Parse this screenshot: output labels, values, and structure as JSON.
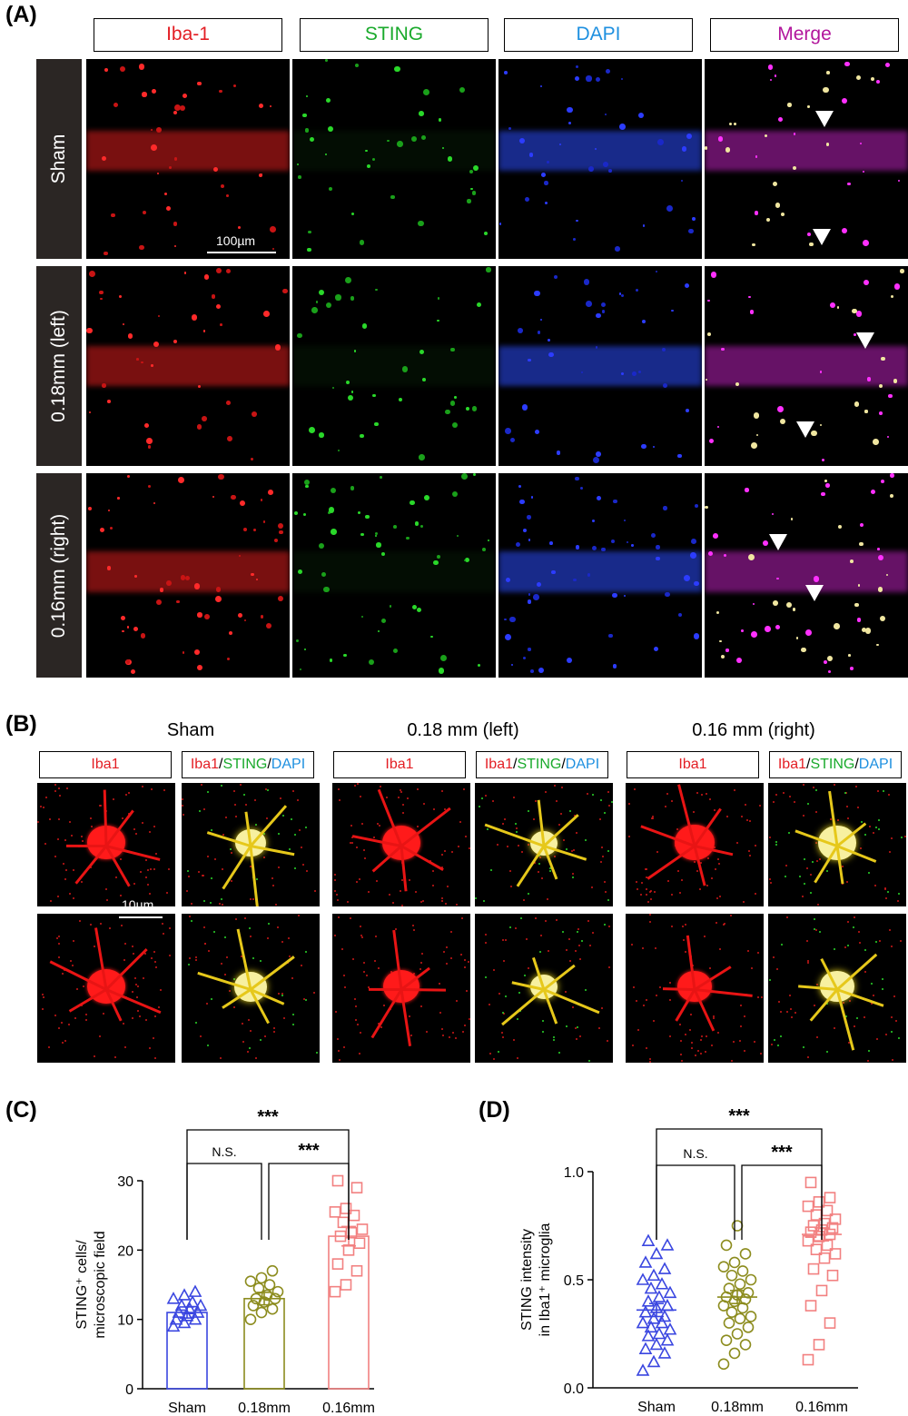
{
  "panels": {
    "A": {
      "letter": "(A)",
      "channels": [
        "Iba-1",
        "STING",
        "DAPI",
        "Merge"
      ],
      "rows": [
        "Sham",
        "0.18mm (left)",
        "0.16mm (right)"
      ],
      "scalebar": "100µm"
    },
    "B": {
      "letter": "(B)",
      "groups": [
        "Sham",
        "0.18 mm (left)",
        "0.16 mm (right)"
      ],
      "label_single": "Iba1",
      "label_merge": {
        "a": "Iba1",
        "b": "STING",
        "c": "DAPI",
        "sep": "/"
      },
      "scalebar": "10µm"
    },
    "C": {
      "letter": "(C)"
    },
    "D": {
      "letter": "(D)"
    }
  },
  "chart_data": [
    {
      "type": "bar",
      "panel": "C",
      "categories": [
        "Sham",
        "0.18mm",
        "0.16mm"
      ],
      "values": [
        11,
        13,
        22
      ],
      "error": [
        0.8,
        0.9,
        1.4
      ],
      "ylabel_line1": "STING⁺ cells/",
      "ylabel_line2": "microscopic field",
      "ylim": [
        0,
        30
      ],
      "yticks": [
        "0",
        "10",
        "20",
        "30"
      ],
      "points": [
        [
          9,
          9.5,
          10,
          10,
          10.5,
          11,
          11,
          11.5,
          12,
          12,
          12.5,
          13,
          13.5,
          14
        ],
        [
          10,
          11,
          11.5,
          12,
          12.5,
          13,
          13,
          13.5,
          14,
          14.5,
          15,
          15.5,
          16,
          17
        ],
        [
          14,
          15,
          17,
          18,
          20,
          21,
          22,
          22.5,
          23,
          24,
          25,
          25.5,
          26,
          29,
          30
        ]
      ],
      "colors": [
        "#3a46e0",
        "#8c8c1e",
        "#f28080"
      ],
      "markers": [
        "triangle",
        "circle",
        "square"
      ],
      "significance": [
        {
          "from": 0,
          "to": 2,
          "label": "***"
        },
        {
          "from": 0,
          "to": 1,
          "label": "N.S."
        },
        {
          "from": 1,
          "to": 2,
          "label": "***"
        }
      ]
    },
    {
      "type": "scatter",
      "panel": "D",
      "categories": [
        "Sham",
        "0.18mm",
        "0.16mm"
      ],
      "means": [
        0.36,
        0.42,
        0.71
      ],
      "error": [
        0.03,
        0.03,
        0.03
      ],
      "ylabel_line1": "STING intensity",
      "ylabel_line2": "in Iba1⁺ microglia",
      "ylim": [
        0,
        1
      ],
      "yticks": [
        "0.0",
        "0.5",
        "1.0"
      ],
      "points": [
        [
          0.08,
          0.12,
          0.16,
          0.18,
          0.2,
          0.22,
          0.24,
          0.25,
          0.27,
          0.28,
          0.3,
          0.3,
          0.32,
          0.33,
          0.35,
          0.37,
          0.38,
          0.4,
          0.42,
          0.44,
          0.46,
          0.48,
          0.5,
          0.52,
          0.55,
          0.58,
          0.62,
          0.66,
          0.68
        ],
        [
          0.11,
          0.16,
          0.2,
          0.22,
          0.25,
          0.28,
          0.3,
          0.32,
          0.33,
          0.35,
          0.37,
          0.38,
          0.4,
          0.41,
          0.42,
          0.43,
          0.44,
          0.46,
          0.48,
          0.5,
          0.52,
          0.54,
          0.56,
          0.58,
          0.62,
          0.66,
          0.75
        ],
        [
          0.13,
          0.2,
          0.3,
          0.38,
          0.45,
          0.52,
          0.55,
          0.6,
          0.62,
          0.64,
          0.66,
          0.68,
          0.7,
          0.71,
          0.72,
          0.73,
          0.74,
          0.75,
          0.76,
          0.78,
          0.8,
          0.82,
          0.84,
          0.86,
          0.88,
          0.95
        ]
      ],
      "colors": [
        "#3a46e0",
        "#8c8c1e",
        "#f28080"
      ],
      "markers": [
        "triangle",
        "circle",
        "square"
      ],
      "significance": [
        {
          "from": 0,
          "to": 2,
          "label": "***"
        },
        {
          "from": 0,
          "to": 1,
          "label": "N.S."
        },
        {
          "from": 1,
          "to": 2,
          "label": "***"
        }
      ]
    }
  ]
}
